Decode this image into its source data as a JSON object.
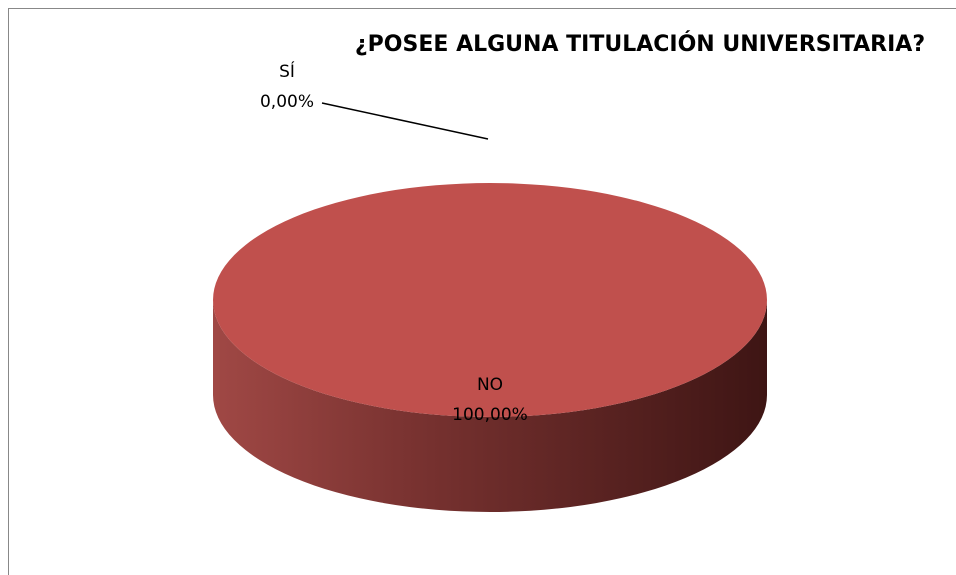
{
  "chart_data": {
    "type": "pie3d",
    "title": "¿POSEE ALGUNA TITULACIÓN UNIVERSITARIA?",
    "categories": [
      "SÍ",
      "NO"
    ],
    "values": [
      0,
      100
    ],
    "value_labels": [
      "0,00%",
      "100,00%"
    ],
    "colors": [
      "#4f81bd",
      "#c0504d"
    ]
  }
}
